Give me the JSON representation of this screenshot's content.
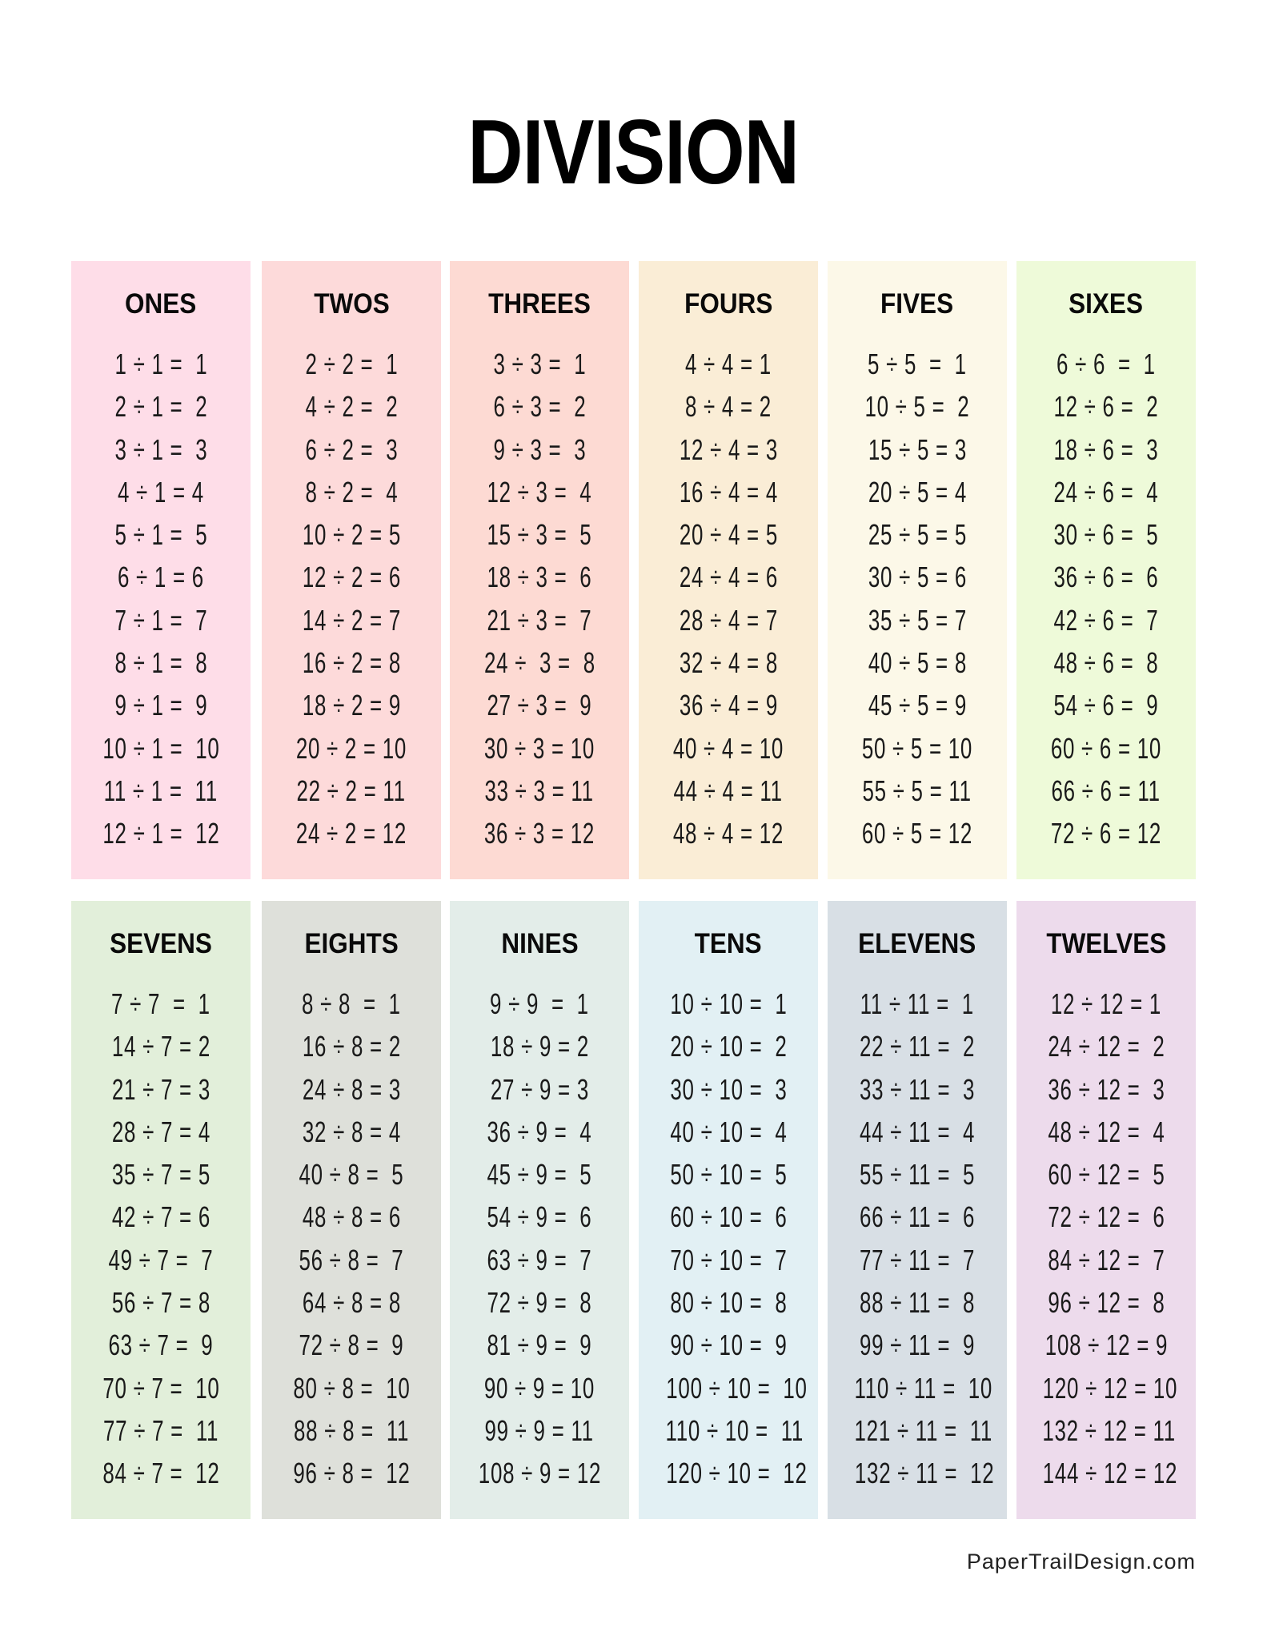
{
  "title": "DIVISION",
  "footer": "PaperTrailDesign.com",
  "sections": [
    {
      "name": "ones",
      "heading": "ONES",
      "color": "#FEDDE8",
      "rows": [
        "1 ÷ 1 =  1",
        "2 ÷ 1 =  2",
        "3 ÷ 1 =  3",
        "4 ÷ 1 = 4",
        "5 ÷ 1 =  5",
        "6 ÷ 1 = 6",
        "7 ÷ 1 =  7",
        "8 ÷ 1 =  8",
        "9 ÷ 1 =  9",
        "10 ÷ 1 =  10",
        "11 ÷ 1 =  11",
        "12 ÷ 1 =  12"
      ]
    },
    {
      "name": "twos",
      "heading": "TWOS",
      "color": "#FDDADA",
      "rows": [
        "2 ÷ 2 =  1",
        "4 ÷ 2 =  2",
        "6 ÷ 2 =  3",
        "8 ÷ 2 =  4",
        "10 ÷ 2 = 5",
        "12 ÷ 2 = 6",
        "14 ÷ 2 = 7",
        "16 ÷ 2 = 8",
        "18 ÷ 2 = 9",
        "20 ÷ 2 = 10",
        "22 ÷ 2 = 11",
        "24 ÷ 2 = 12"
      ]
    },
    {
      "name": "threes",
      "heading": "THREES",
      "color": "#FDDAD3",
      "rows": [
        "3 ÷ 3 =  1",
        "6 ÷ 3 =  2",
        "9 ÷ 3 =  3",
        "12 ÷ 3 =  4",
        "15 ÷ 3 =  5",
        "18 ÷ 3 =  6",
        "21 ÷ 3 =  7",
        "24 ÷  3 =  8",
        "27 ÷ 3 =  9",
        "30 ÷ 3 = 10",
        "33 ÷ 3 = 11",
        "36 ÷ 3 = 12"
      ]
    },
    {
      "name": "fours",
      "heading": "FOURS",
      "color": "#FAEDD6",
      "rows": [
        "4 ÷ 4 = 1",
        "8 ÷ 4 = 2",
        "12 ÷ 4 = 3",
        "16 ÷ 4 = 4",
        "20 ÷ 4 = 5",
        "24 ÷ 4 = 6",
        "28 ÷ 4 = 7",
        "32 ÷ 4 = 8",
        "36 ÷ 4 = 9",
        "40 ÷ 4 = 10",
        "44 ÷ 4 = 11",
        "48 ÷ 4 = 12"
      ]
    },
    {
      "name": "fives",
      "heading": "FIVES",
      "color": "#FCF8E8",
      "rows": [
        "5 ÷ 5  =  1",
        "10 ÷ 5 =  2",
        "15 ÷ 5 = 3",
        "20 ÷ 5 = 4",
        "25 ÷ 5 = 5",
        "30 ÷ 5 = 6",
        "35 ÷ 5 = 7",
        "40 ÷ 5 = 8",
        "45 ÷ 5 = 9",
        "50 ÷ 5 = 10",
        "55 ÷ 5 = 11",
        "60 ÷ 5 = 12"
      ]
    },
    {
      "name": "sixes",
      "heading": "SIXES",
      "color": "#EEFAD9",
      "rows": [
        "6 ÷ 6  =  1",
        "12 ÷ 6 =  2",
        "18 ÷ 6 =  3",
        "24 ÷ 6 =  4",
        "30 ÷ 6 =  5",
        "36 ÷ 6 =  6",
        "42 ÷ 6 =  7",
        "48 ÷ 6 =  8",
        "54 ÷ 6 =  9",
        "60 ÷ 6 = 10",
        "66 ÷ 6 = 11",
        "72 ÷ 6 = 12"
      ]
    },
    {
      "name": "sevens",
      "heading": "SEVENS",
      "color": "#E2EFDA",
      "rows": [
        "7 ÷ 7  =  1",
        "14 ÷ 7 = 2",
        "21 ÷ 7 = 3",
        "28 ÷ 7 = 4",
        "35 ÷ 7 = 5",
        "42 ÷ 7 = 6",
        "49 ÷ 7 =  7",
        "56 ÷ 7 = 8",
        "63 ÷ 7 =  9",
        "70 ÷ 7 =  10",
        "77 ÷ 7 =  11",
        "84 ÷ 7 =  12"
      ]
    },
    {
      "name": "eights",
      "heading": "EIGHTS",
      "color": "#DEE0DA",
      "rows": [
        "8 ÷ 8  =  1",
        "16 ÷ 8 = 2",
        "24 ÷ 8 = 3",
        "32 ÷ 8 = 4",
        "40 ÷ 8 =  5",
        "48 ÷ 8 = 6",
        "56 ÷ 8 =  7",
        "64 ÷ 8 = 8",
        "72 ÷ 8 =  9",
        "80 ÷ 8 =  10",
        "88 ÷ 8 =  11",
        "96 ÷ 8 =  12"
      ]
    },
    {
      "name": "nines",
      "heading": "NINES",
      "color": "#E3EDE9",
      "rows": [
        "9 ÷ 9  =  1",
        "18 ÷ 9 = 2",
        "27 ÷ 9 = 3",
        "36 ÷ 9 =  4",
        "45 ÷ 9 =  5",
        "54 ÷ 9 =  6",
        "63 ÷ 9 =  7",
        "72 ÷ 9 =  8",
        "81 ÷ 9 =  9",
        "90 ÷ 9 = 10",
        "99 ÷ 9 = 11",
        "108 ÷ 9 = 12"
      ]
    },
    {
      "name": "tens",
      "heading": "TENS",
      "color": "#E2F0F4",
      "rows": [
        "10 ÷ 10 =  1",
        "20 ÷ 10 =  2",
        "30 ÷ 10 =  3",
        "40 ÷ 10 =  4",
        "50 ÷ 10 =  5",
        "60 ÷ 10 =  6",
        "70 ÷ 10 =  7",
        "80 ÷ 10 =  8",
        "90 ÷ 10 =  9",
        "100 ÷ 10 =  10",
        "110 ÷ 10 =  11",
        "120 ÷ 10 =  12"
      ]
    },
    {
      "name": "elevens",
      "heading": "ELEVENS",
      "color": "#D8DFE5",
      "rows": [
        "11 ÷ 11 =  1",
        "22 ÷ 11 =  2",
        "33 ÷ 11 =  3",
        "44 ÷ 11 =  4",
        "55 ÷ 11 =  5",
        "66 ÷ 11 =  6",
        "77 ÷ 11 =  7",
        "88 ÷ 11 =  8",
        "99 ÷ 11 =  9",
        "110 ÷ 11 =  10",
        "121 ÷ 11 =  11",
        "132 ÷ 11 =  12"
      ]
    },
    {
      "name": "twelves",
      "heading": "TWELVES",
      "color": "#EDDBEC",
      "rows": [
        "12 ÷ 12 = 1",
        "24 ÷ 12 =  2",
        "36 ÷ 12 =  3",
        "48 ÷ 12 =  4",
        "60 ÷ 12 =  5",
        "72 ÷ 12 =  6",
        "84 ÷ 12 =  7",
        "96 ÷ 12 =  8",
        "108 ÷ 12 = 9",
        "120 ÷ 12 = 10",
        "132 ÷ 12 = 11",
        "144 ÷ 12 = 12"
      ]
    }
  ]
}
